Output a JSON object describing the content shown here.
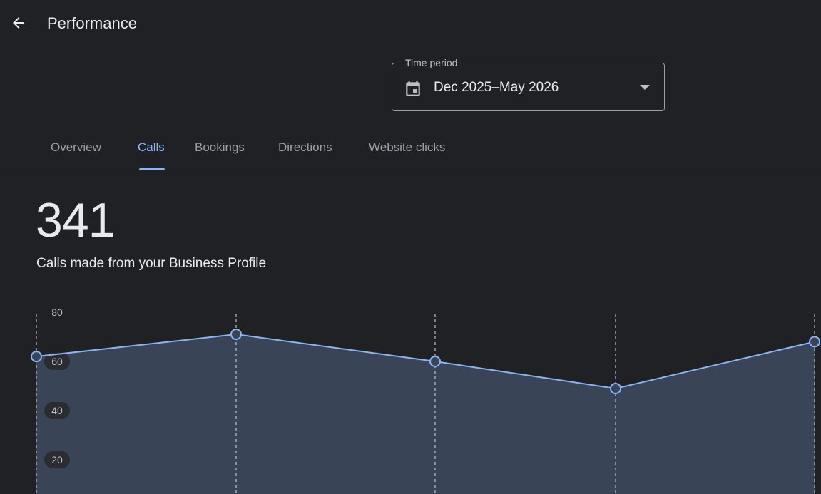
{
  "header": {
    "title": "Performance",
    "back_icon": "arrow-back-icon"
  },
  "time_period": {
    "label": "Time period",
    "value": "Dec 2025–May 2026",
    "icon": "calendar-icon"
  },
  "tabs": [
    {
      "label": "Overview",
      "active": false
    },
    {
      "label": "Calls",
      "active": true
    },
    {
      "label": "Bookings",
      "active": false
    },
    {
      "label": "Directions",
      "active": false
    },
    {
      "label": "Website clicks",
      "active": false
    }
  ],
  "metric": {
    "value": "341",
    "caption": "Calls made from your Business Profile"
  },
  "colors": {
    "background": "#202124",
    "accent": "#8ab4f8",
    "area_fill": "#394457",
    "text": "#e8eaed",
    "muted_text": "#9aa0a6"
  },
  "chart_data": {
    "type": "area",
    "y_ticks": [
      "80",
      "60",
      "40",
      "20"
    ],
    "ylim": [
      0,
      80
    ],
    "points": [
      {
        "x": 0,
        "y": 62
      },
      {
        "x": 1,
        "y": 71
      },
      {
        "x": 2,
        "y": 60
      },
      {
        "x": 3,
        "y": 49
      },
      {
        "x": 4,
        "y": 68
      }
    ],
    "grid": "vertical-dashed"
  }
}
